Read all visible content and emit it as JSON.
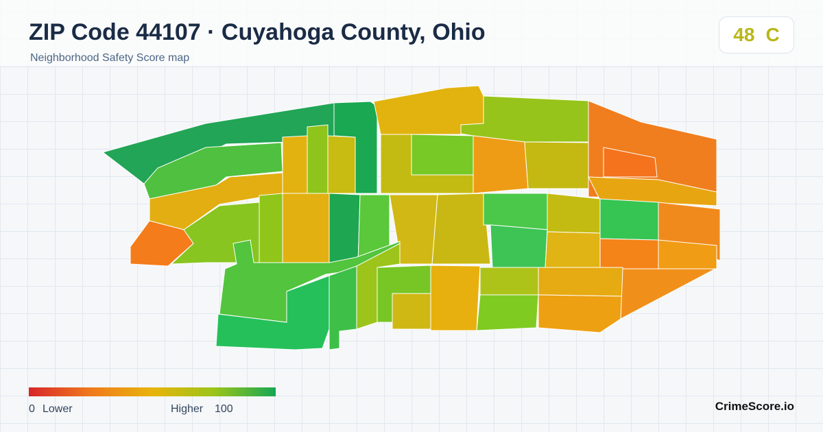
{
  "header": {
    "title": "ZIP Code 44107 · Cuyahoga County, Ohio",
    "subtitle": "Neighborhood Safety Score map"
  },
  "score": {
    "value": "48",
    "grade": "C"
  },
  "legend": {
    "min": "0",
    "min_label": "Lower",
    "max_label": "Higher",
    "max": "100"
  },
  "brand": "CrimeScore.io"
}
